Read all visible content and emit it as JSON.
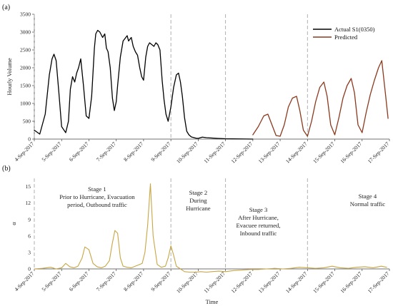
{
  "panel_a_label": "(a)",
  "panel_b_label": "(b)",
  "colors": {
    "actual": "#000000",
    "predicted": "#8B3A1E",
    "alpha": "#C8A645",
    "stage_divider": "#a8a8a8",
    "axis": "#444444"
  },
  "chart_data": [
    {
      "type": "line",
      "panel": "a",
      "ylabel": "Hourly Volume",
      "xlabel": "",
      "ylim": [
        0,
        3500
      ],
      "yticks": [
        0,
        500,
        1000,
        1500,
        2000,
        2500,
        3000,
        3500
      ],
      "x_ticks": [
        "4-Sep-2017",
        "5-Sep-2017",
        "6-Sep-2017",
        "7-Sep-2017",
        "8-Sep-2017",
        "9-Sep-2017",
        "10-Sep-2017",
        "11-Sep-2017",
        "12-Sep-2017",
        "13-Sep-2017",
        "14-Sep-2017",
        "15-Sep-2017",
        "16-Sep-2017",
        "17-Sep-2017"
      ],
      "x_unit": "day index from 4-Sep-2017 (0 = 4-Sep-2017, 13 = 17-Sep-2017)",
      "stage_dividers": [
        "4-Sep-2017",
        "9-Sep-2017",
        "11-Sep-2017",
        "14-Sep-2017"
      ],
      "legend": {
        "position": "top-right"
      },
      "series": [
        {
          "name": "Actual S1(0350)",
          "color": "#000000",
          "x": [
            0.0,
            0.2,
            0.4,
            0.55,
            0.65,
            0.72,
            0.8,
            0.9,
            1.0,
            1.15,
            1.25,
            1.32,
            1.4,
            1.48,
            1.55,
            1.62,
            1.7,
            1.8,
            1.9,
            2.0,
            2.1,
            2.2,
            2.25,
            2.32,
            2.4,
            2.5,
            2.58,
            2.64,
            2.7,
            2.78,
            2.86,
            2.93,
            3.0,
            3.05,
            3.15,
            3.25,
            3.3,
            3.4,
            3.45,
            3.55,
            3.62,
            3.7,
            3.78,
            3.86,
            3.93,
            4.0,
            4.08,
            4.15,
            4.22,
            4.3,
            4.38,
            4.45,
            4.52,
            4.6,
            4.68,
            4.75,
            4.82,
            4.9,
            5.0,
            5.1,
            5.2,
            5.28,
            5.35,
            5.42,
            5.5,
            5.58,
            5.66,
            5.75,
            5.85,
            5.92,
            6.0,
            6.15,
            6.3,
            6.5,
            6.7,
            6.85,
            7.0,
            7.5,
            8.0
          ],
          "y": [
            250,
            140,
            700,
            1800,
            2250,
            2380,
            2200,
            1300,
            350,
            180,
            500,
            1400,
            1750,
            1600,
            1850,
            2000,
            2250,
            1500,
            650,
            580,
            1200,
            2550,
            2950,
            3050,
            3000,
            2850,
            2950,
            2550,
            2450,
            2000,
            1150,
            800,
            1050,
            1500,
            2300,
            2750,
            2800,
            2900,
            2750,
            2850,
            2600,
            2450,
            2350,
            2000,
            1750,
            1650,
            2300,
            2600,
            2700,
            2650,
            2600,
            2700,
            2650,
            2500,
            1650,
            1100,
            700,
            500,
            900,
            1450,
            1800,
            1850,
            1600,
            1200,
            600,
            220,
            120,
            60,
            40,
            25,
            20,
            55,
            40,
            30,
            20,
            15,
            10,
            5,
            0
          ]
        },
        {
          "name": "Predicted",
          "color": "#8B3A1E",
          "x": [
            8.0,
            8.2,
            8.4,
            8.55,
            8.7,
            8.85,
            9.0,
            9.15,
            9.3,
            9.45,
            9.6,
            9.72,
            9.85,
            10.0,
            10.15,
            10.3,
            10.45,
            10.6,
            10.72,
            10.85,
            11.0,
            11.15,
            11.3,
            11.45,
            11.6,
            11.72,
            11.85,
            12.0,
            12.15,
            12.3,
            12.45,
            12.6,
            12.72,
            12.85,
            12.95
          ],
          "y": [
            120,
            350,
            650,
            700,
            400,
            100,
            80,
            400,
            900,
            1150,
            1200,
            800,
            250,
            80,
            500,
            1050,
            1450,
            1600,
            1200,
            400,
            120,
            600,
            1150,
            1500,
            1700,
            1300,
            400,
            180,
            750,
            1250,
            1650,
            2000,
            2200,
            1300,
            580
          ]
        }
      ]
    },
    {
      "type": "line",
      "panel": "b",
      "ylabel": "α",
      "xlabel": "Time",
      "ylim": [
        -1,
        16.5
      ],
      "yticks": [
        0,
        3,
        6,
        9,
        12,
        15
      ],
      "x_ticks": [
        "4-Sep-2017",
        "5-Sep-2017",
        "6-Sep-2017",
        "7-Sep-2017",
        "8-Sep-2017",
        "9-Sep-2017",
        "10-Sep-2017",
        "11-Sep-2017",
        "12-Sep-2017",
        "13-Sep-2017",
        "14-Sep-2017",
        "15-Sep-2017",
        "16-Sep-2017",
        "17-Sep-2017"
      ],
      "x_unit": "day index from 4-Sep-2017 (0 = 4-Sep-2017, 13 = 17-Sep-2017)",
      "stage_dividers": [
        "4-Sep-2017",
        "9-Sep-2017",
        "11-Sep-2017",
        "14-Sep-2017"
      ],
      "stages": [
        {
          "lines": [
            "Stage 1",
            "Prior to Hurricane, Evacuation",
            "period, Outbound traffic"
          ]
        },
        {
          "lines": [
            "Stage 2",
            "During",
            "Hurricane"
          ]
        },
        {
          "lines": [
            "Stage 3",
            "After Hurricane,",
            "Evacuee returned,",
            "Inbound traffic"
          ]
        },
        {
          "lines": [
            "Stage 4",
            "Normal traffic"
          ]
        }
      ],
      "series": [
        {
          "name": "",
          "color": "#C8A645",
          "x": [
            0.0,
            0.3,
            0.6,
            0.8,
            1.0,
            1.15,
            1.3,
            1.45,
            1.6,
            1.75,
            1.85,
            2.0,
            2.15,
            2.3,
            2.45,
            2.6,
            2.75,
            2.85,
            2.95,
            3.05,
            3.15,
            3.25,
            3.4,
            3.55,
            3.7,
            3.85,
            3.95,
            4.05,
            4.15,
            4.25,
            4.35,
            4.5,
            4.65,
            4.8,
            4.9,
            5.0,
            5.1,
            5.2,
            5.35,
            5.5,
            5.7,
            5.9,
            6.1,
            6.3,
            6.5,
            6.75,
            7.0,
            7.3,
            7.6,
            7.9,
            8.2,
            8.5,
            8.8,
            9.1,
            9.4,
            9.7,
            10.0,
            10.3,
            10.6,
            10.9,
            11.2,
            11.5,
            11.8,
            12.1,
            12.4,
            12.7,
            12.9
          ],
          "y": [
            0.0,
            0.1,
            0.3,
            0.0,
            0.2,
            1.0,
            0.4,
            0.2,
            0.5,
            2.0,
            4.0,
            3.5,
            1.0,
            0.4,
            0.2,
            0.5,
            1.5,
            4.5,
            7.0,
            6.5,
            2.0,
            0.5,
            0.3,
            0.2,
            0.5,
            0.8,
            1.0,
            3.0,
            8.0,
            15.5,
            6.0,
            0.8,
            0.3,
            0.5,
            2.0,
            4.2,
            2.5,
            0.5,
            0.0,
            -0.5,
            -0.6,
            -0.6,
            -0.5,
            -0.6,
            -0.5,
            -0.4,
            -0.5,
            -0.3,
            -0.2,
            -0.1,
            -0.1,
            0.0,
            0.1,
            0.0,
            0.1,
            0.3,
            0.2,
            0.1,
            0.2,
            0.5,
            0.2,
            0.1,
            0.3,
            0.4,
            0.2,
            0.5,
            0.3
          ]
        }
      ]
    }
  ]
}
